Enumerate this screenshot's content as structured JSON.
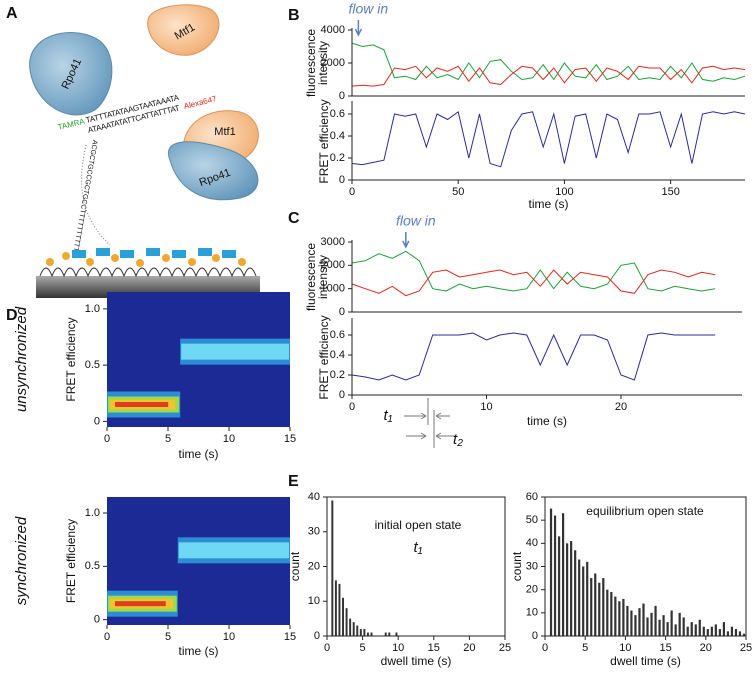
{
  "panel_labels": [
    "A",
    "B",
    "C",
    "D",
    "E"
  ],
  "diagram": {
    "protein_1": "Rpo41",
    "protein_2": "Mtf1",
    "dye_donor": "TAMRA",
    "strand_top": "TATTTATATAAGTAATAAATA",
    "strand_bottom": "ATAAATATATTCATTATTTAT",
    "dye_acceptor": "Alexa647",
    "complex_protein_top": "Mtf1",
    "complex_protein_bottom": "Rpo41",
    "loop_sequence": "ACGCTGCCGCTGCCTTTTTTTTTT"
  },
  "chart_data": [
    {
      "type": "line",
      "ylabel": [
        "fluorescence",
        "intensity"
      ],
      "xlim": [
        0,
        185
      ],
      "ylim": [
        0,
        4000
      ],
      "yticks": [
        0,
        2000,
        4000
      ],
      "annotation": {
        "text": "flow in",
        "x": 3
      },
      "x": [
        0,
        5,
        10,
        15,
        20,
        25,
        30,
        35,
        40,
        45,
        50,
        55,
        60,
        65,
        70,
        75,
        80,
        85,
        90,
        95,
        100,
        105,
        110,
        115,
        120,
        125,
        130,
        135,
        140,
        145,
        150,
        155,
        160,
        165,
        170,
        175,
        180,
        185
      ],
      "series": [
        {
          "color": "#1f9e3a",
          "values": [
            3200,
            3000,
            3100,
            2800,
            1100,
            1200,
            1000,
            1800,
            1100,
            1300,
            1000,
            2000,
            1100,
            2100,
            2200,
            1500,
            1000,
            1100,
            1900,
            1000,
            2000,
            1200,
            1100,
            1900,
            1000,
            1200,
            1800,
            1000,
            1100,
            1000,
            1800,
            1100,
            2000,
            1000,
            900,
            1100,
            1000,
            1200
          ]
        },
        {
          "color": "#e0281e",
          "values": [
            600,
            650,
            600,
            700,
            1700,
            1600,
            1800,
            1100,
            1700,
            1500,
            1800,
            900,
            1700,
            800,
            700,
            1300,
            1800,
            1700,
            1000,
            1700,
            800,
            1600,
            1700,
            900,
            1700,
            1500,
            1000,
            1800,
            1700,
            1700,
            1000,
            1600,
            800,
            1700,
            1800,
            1600,
            1700,
            1600
          ]
        }
      ]
    },
    {
      "type": "line",
      "ylabel": [
        "FRET efficiency"
      ],
      "xlabel": "time (s)",
      "xlim": [
        0,
        185
      ],
      "xticks": [
        0,
        50,
        100,
        150
      ],
      "ylim": [
        0,
        0.7
      ],
      "yticks": [
        0,
        0.2,
        0.4,
        0.6
      ],
      "x": [
        0,
        5,
        10,
        15,
        20,
        25,
        30,
        35,
        40,
        45,
        50,
        55,
        60,
        65,
        70,
        75,
        80,
        85,
        90,
        95,
        100,
        105,
        110,
        115,
        120,
        125,
        130,
        135,
        140,
        145,
        150,
        155,
        160,
        165,
        170,
        175,
        180,
        185
      ],
      "series": [
        {
          "color": "#2b2b9b",
          "values": [
            0.15,
            0.14,
            0.16,
            0.18,
            0.6,
            0.58,
            0.6,
            0.3,
            0.6,
            0.55,
            0.62,
            0.2,
            0.6,
            0.15,
            0.12,
            0.45,
            0.6,
            0.62,
            0.3,
            0.6,
            0.15,
            0.58,
            0.6,
            0.2,
            0.6,
            0.55,
            0.25,
            0.6,
            0.6,
            0.62,
            0.3,
            0.6,
            0.15,
            0.6,
            0.62,
            0.6,
            0.62,
            0.6
          ]
        }
      ]
    },
    {
      "type": "line",
      "ylabel": [
        "fluorescence",
        "intensity"
      ],
      "xlim": [
        0,
        29
      ],
      "ylim": [
        0,
        3000
      ],
      "yticks": [
        0,
        1000,
        2000,
        3000
      ],
      "annotation": {
        "text": "flow in",
        "x": 4
      },
      "x": [
        0,
        1,
        2,
        3,
        4,
        5,
        6,
        7,
        8,
        9,
        10,
        11,
        12,
        13,
        14,
        15,
        16,
        17,
        18,
        19,
        20,
        21,
        22,
        23,
        24,
        25,
        26,
        27
      ],
      "series": [
        {
          "color": "#1f9e3a",
          "values": [
            2100,
            2200,
            2500,
            2300,
            2600,
            2200,
            1000,
            900,
            1200,
            1000,
            1100,
            1000,
            900,
            1000,
            1800,
            1000,
            1700,
            1100,
            1000,
            1200,
            2000,
            2100,
            1000,
            900,
            1100,
            1000,
            900,
            1000
          ]
        },
        {
          "color": "#e0281e",
          "values": [
            1200,
            1000,
            800,
            1100,
            700,
            900,
            1700,
            1800,
            1500,
            1600,
            1700,
            1800,
            1600,
            1700,
            1100,
            1800,
            1200,
            1700,
            1600,
            1500,
            900,
            800,
            1600,
            1800,
            1700,
            1500,
            1700,
            1600
          ]
        }
      ]
    },
    {
      "type": "line",
      "ylabel": [
        "FRET efficiency"
      ],
      "xlabel": "time (s)",
      "xlim": [
        0,
        29
      ],
      "xticks": [
        0,
        10,
        20
      ],
      "ylim": [
        0,
        0.75
      ],
      "yticks": [
        0,
        0.2,
        0.4,
        0.6
      ],
      "annotations": [
        "t₁",
        "t₂"
      ],
      "x": [
        0,
        1,
        2,
        3,
        4,
        5,
        6,
        7,
        8,
        9,
        10,
        11,
        12,
        13,
        14,
        15,
        16,
        17,
        18,
        19,
        20,
        21,
        22,
        23,
        24,
        25,
        26,
        27
      ],
      "series": [
        {
          "color": "#2b2b9b",
          "values": [
            0.2,
            0.18,
            0.15,
            0.2,
            0.15,
            0.2,
            0.6,
            0.6,
            0.6,
            0.62,
            0.55,
            0.6,
            0.62,
            0.6,
            0.3,
            0.6,
            0.3,
            0.6,
            0.6,
            0.55,
            0.2,
            0.15,
            0.6,
            0.62,
            0.6,
            0.6,
            0.6,
            0.6
          ]
        }
      ]
    },
    {
      "type": "heatmap",
      "side_label": "unsynchronized",
      "ylabel": [
        "FRET efficiency"
      ],
      "xlabel": "time (s)",
      "xlim": [
        0,
        15
      ],
      "xticks": [
        0,
        5,
        10,
        15
      ],
      "ylim": [
        -0.05,
        1.15
      ],
      "yticks": [
        0,
        0.5,
        {
          "value": 1,
          "label": "1.0"
        }
      ],
      "bands": [
        {
          "x": [
            0,
            6
          ],
          "y": 0.15
        },
        {
          "x": [
            6,
            15
          ],
          "y": 0.62
        }
      ]
    },
    {
      "type": "heatmap",
      "side_label": "synchronized",
      "ylabel": [
        "FRET efficiency"
      ],
      "xlabel": "time (s)",
      "xlim": [
        0,
        15
      ],
      "xticks": [
        0,
        5,
        10,
        15
      ],
      "ylim": [
        -0.05,
        1.15
      ],
      "yticks": [
        0,
        0.5,
        {
          "value": 1,
          "label": "1.0"
        }
      ],
      "bands": [
        {
          "x": [
            0,
            5.8
          ],
          "y": 0.15
        },
        {
          "x": [
            5.8,
            15
          ],
          "y": 0.65
        }
      ]
    },
    {
      "type": "histogram",
      "ylabel": [
        "count"
      ],
      "xlabel": "dwell time (s)",
      "color": "#333333",
      "annotations": [
        "initial open state",
        "t₁"
      ],
      "xlim": [
        0,
        25
      ],
      "xticks": [
        0,
        5,
        10,
        15,
        20,
        25
      ],
      "ylim": [
        0,
        40
      ],
      "yticks": [
        0,
        10,
        20,
        30,
        40
      ],
      "bins": [
        0,
        0.5,
        1,
        1.5,
        2,
        2.5,
        3,
        3.5,
        4,
        4.5,
        5,
        5.5,
        6,
        6.5,
        7,
        7.5,
        8,
        8.5,
        9,
        9.5,
        10
      ],
      "values": [
        0,
        39,
        16,
        15,
        11,
        8,
        5,
        4,
        3,
        2,
        2,
        1,
        1,
        0,
        0,
        0,
        1,
        1,
        0,
        1
      ]
    },
    {
      "type": "histogram",
      "ylabel": [
        "count"
      ],
      "xlabel": "dwell time (s)",
      "color": "#333333",
      "annotations": [
        "equilibrium open state"
      ],
      "xlim": [
        0,
        25
      ],
      "xticks": [
        0,
        5,
        10,
        15,
        20,
        25
      ],
      "ylim": [
        0,
        60
      ],
      "yticks": [
        0,
        10,
        20,
        30,
        40,
        50,
        60
      ],
      "bins": [
        0.5,
        1,
        1.5,
        2,
        2.5,
        3,
        3.5,
        4,
        4.5,
        5,
        5.5,
        6,
        6.5,
        7,
        7.5,
        8,
        8.5,
        9,
        9.5,
        10,
        10.5,
        11,
        11.5,
        12,
        12.5,
        13,
        13.5,
        14,
        14.5,
        15,
        15.5,
        16,
        16.5,
        17,
        17.5,
        18,
        18.5,
        19,
        19.5,
        20,
        20.5,
        21,
        21.5,
        22,
        22.5,
        23,
        23.5,
        24,
        24.5,
        25
      ],
      "values": [
        55,
        52,
        43,
        53,
        40,
        41,
        37,
        33,
        30,
        32,
        25,
        27,
        23,
        25,
        20,
        19,
        17,
        15,
        16,
        13,
        11,
        9,
        12,
        14,
        8,
        10,
        13,
        7,
        9,
        6,
        11,
        5,
        10,
        8,
        4,
        6,
        5,
        7,
        4,
        3,
        4,
        5,
        3,
        6,
        2,
        4,
        3,
        2,
        1
      ]
    }
  ]
}
